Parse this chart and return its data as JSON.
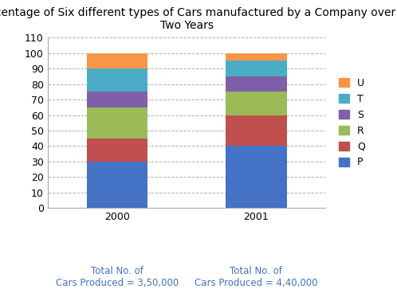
{
  "title": "Percentage of Six different types of Cars manufactured by a Company over\nTwo Years",
  "years": [
    "2000",
    "2001"
  ],
  "categories": [
    "P",
    "Q",
    "R",
    "S",
    "T",
    "U"
  ],
  "values": {
    "2000": [
      30,
      15,
      20,
      10,
      15,
      10
    ],
    "2001": [
      40,
      20,
      15,
      10,
      10,
      5
    ]
  },
  "colors": {
    "P": "#4472C4",
    "Q": "#C0504D",
    "R": "#9BBB59",
    "S": "#7F5FA9",
    "T": "#4BACC6",
    "U": "#F79646"
  },
  "ylim": [
    0,
    110
  ],
  "yticks": [
    0,
    10,
    20,
    30,
    40,
    50,
    60,
    70,
    80,
    90,
    100,
    110
  ],
  "xlabel_notes": [
    "Total No. of\nCars Produced = 3,50,000",
    "Total No. of\nCars Produced = 4,40,000"
  ],
  "background_color": "#ffffff",
  "grid_color": "#b0b0b0",
  "title_fontsize": 10,
  "label_fontsize": 9,
  "legend_fontsize": 9,
  "xlabel_note_color": "#4472C4",
  "bar_width": 0.22
}
